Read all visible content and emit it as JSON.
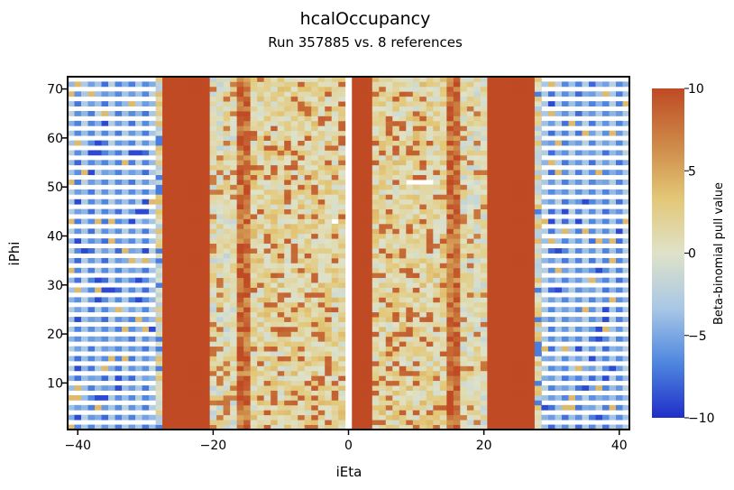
{
  "chart_data": {
    "type": "heatmap",
    "title": "hcalOccupancy",
    "subtitle": "Run 357885 vs. 8 references",
    "xlabel": "iEta",
    "ylabel": "iPhi",
    "xlim": [
      -41.5,
      41.5
    ],
    "ylim": [
      0.5,
      72.5
    ],
    "xticks": [
      -40,
      -20,
      0,
      20,
      40
    ],
    "yticks": [
      10,
      20,
      30,
      40,
      50,
      60,
      70
    ],
    "colorbar": {
      "label": "Beta-binomial pull value",
      "range": [
        -10,
        10
      ],
      "ticks": [
        10,
        5,
        0,
        -5,
        -10
      ],
      "colormap": [
        "#1f2fc8",
        "#4f86df",
        "#a9c8e6",
        "#dfe2c8",
        "#e3c777",
        "#cd8746",
        "#bf4a24"
      ]
    },
    "grid": false,
    "x_bins": "integer iEta from -41 to 41 (empty column at 0)",
    "y_bins": "integer iPhi from 1 to 72",
    "cells_description": "pull value per (iEta, iPhi) cell, read approximately from the colour map",
    "band_values": [
      {
        "ieta_from": -41,
        "ieta_to": -29,
        "pull": -5,
        "note": "odd iPhi rows only, alternating blue shades"
      },
      {
        "ieta_from": -28,
        "ieta_to": -28,
        "pull": 0
      },
      {
        "ieta_from": -27,
        "ieta_to": -21,
        "pull": 10
      },
      {
        "ieta_from": -20,
        "ieta_to": -17,
        "pull": 1
      },
      {
        "ieta_from": -16,
        "ieta_to": -15,
        "pull": 8
      },
      {
        "ieta_from": -14,
        "ieta_to": -1,
        "pull": 2
      },
      {
        "ieta_from": 1,
        "ieta_to": 3,
        "pull": 9
      },
      {
        "ieta_from": 4,
        "ieta_to": 14,
        "pull": 2
      },
      {
        "ieta_from": 15,
        "ieta_to": 16,
        "pull": 8
      },
      {
        "ieta_from": 17,
        "ieta_to": 20,
        "pull": 1
      },
      {
        "ieta_from": 21,
        "ieta_to": 27,
        "pull": 10
      },
      {
        "ieta_from": 28,
        "ieta_to": 28,
        "pull": 0
      },
      {
        "ieta_from": 29,
        "ieta_to": 41,
        "pull": -5,
        "note": "odd iPhi rows only, alternating blue shades"
      }
    ],
    "empty_cells": [
      {
        "ieta": -2,
        "iphi": 43
      },
      {
        "ieta": 9,
        "iphi": 51
      },
      {
        "ieta": 10,
        "iphi": 51
      },
      {
        "ieta": 11,
        "iphi": 51
      },
      {
        "ieta": 12,
        "iphi": 51
      }
    ]
  }
}
